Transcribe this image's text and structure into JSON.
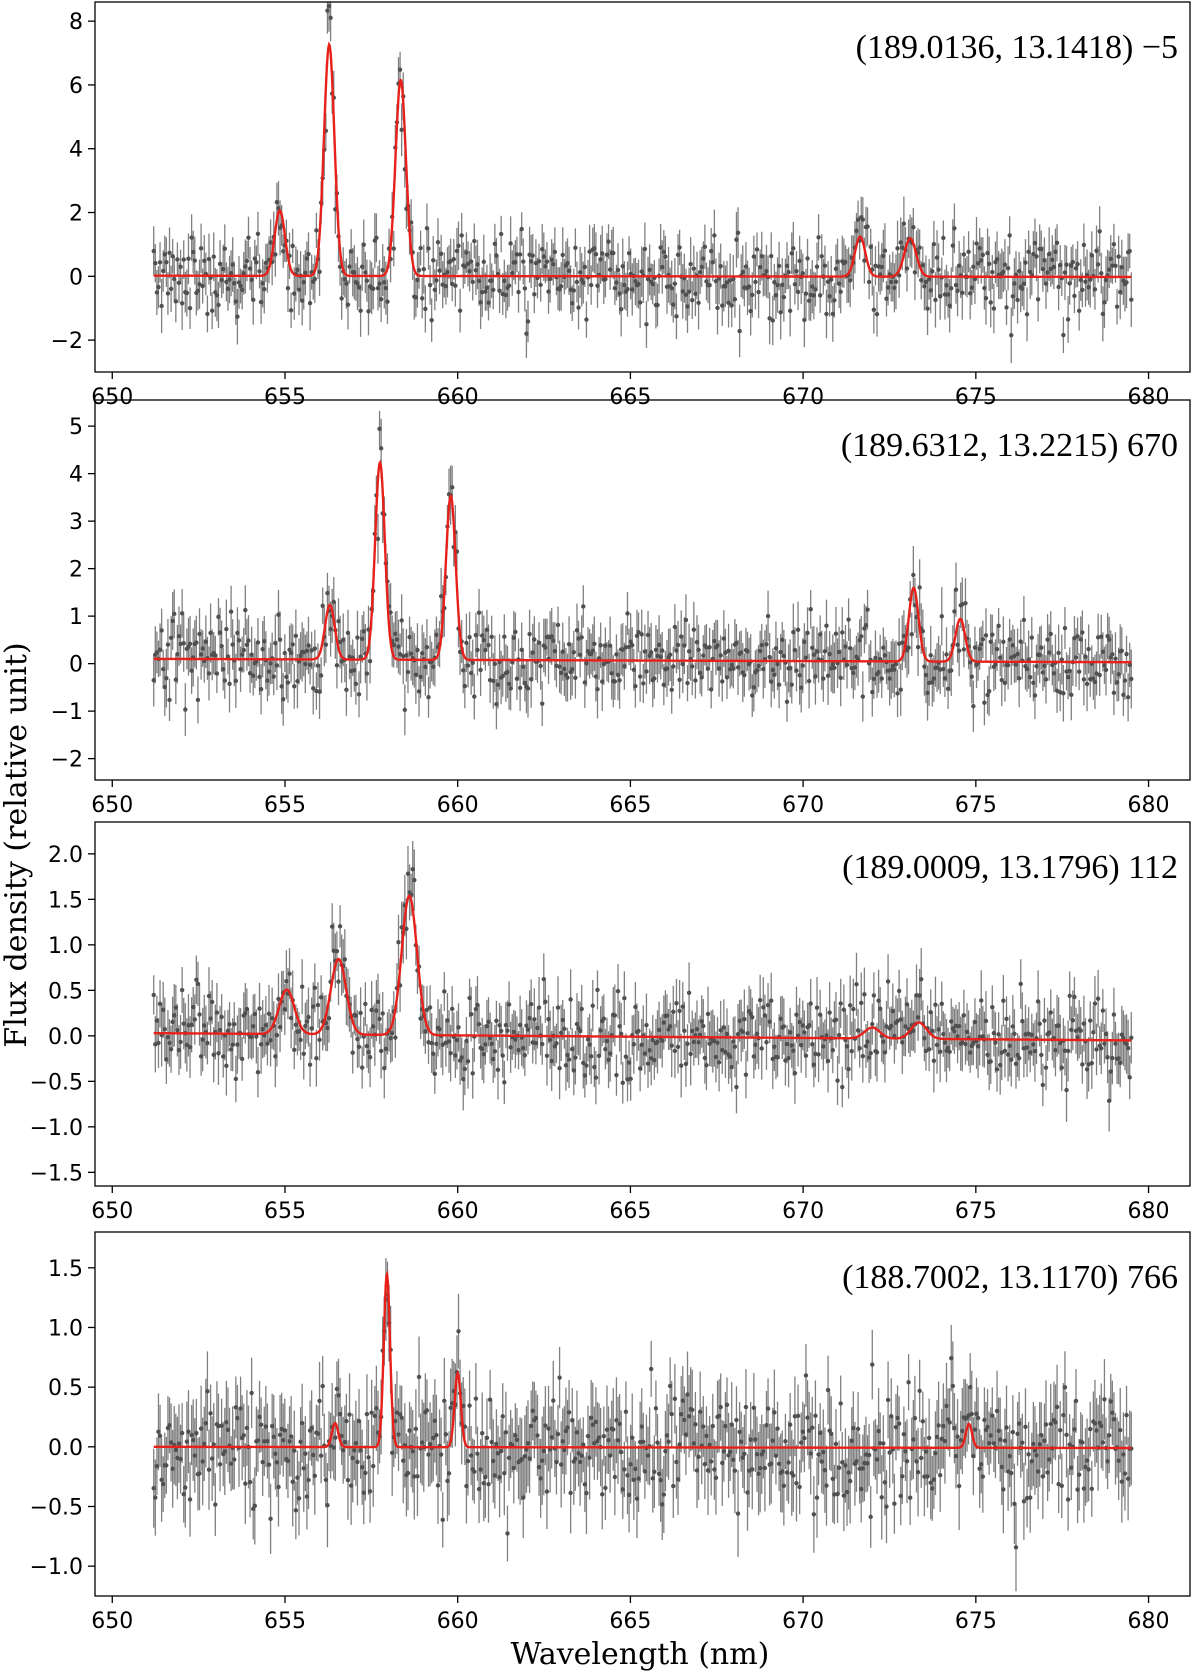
{
  "figure": {
    "xlabel": "Wavelength (nm)",
    "ylabel": "Flux density (relative unit)"
  },
  "chart_data": [
    {
      "type": "line",
      "title": "",
      "annotation": "(189.0136, 13.1418)  −5",
      "xlabel": "Wavelength (nm)",
      "ylabel": "Flux density (relative unit)",
      "xlim": [
        649.5,
        681.2
      ],
      "ylim": [
        -3.0,
        8.6
      ],
      "xticks": [
        650,
        655,
        660,
        665,
        670,
        675,
        680
      ],
      "xtick_labels": [
        "650",
        "655",
        "660",
        "665",
        "670",
        "675",
        "680"
      ],
      "yticks": [
        -2,
        0,
        2,
        4,
        6,
        8
      ],
      "ytick_labels": [
        "−2",
        "0",
        "2",
        "4",
        "6",
        "8"
      ],
      "x_range": [
        651.2,
        679.5
      ],
      "noise_sigma": 0.8,
      "errbar": 0.7,
      "seed": 11,
      "model": {
        "baseline": [
          0.02,
          -0.02
        ],
        "lines": [
          {
            "center": 654.85,
            "amp": 2.05,
            "sigma": 0.15
          },
          {
            "center": 656.28,
            "amp": 7.25,
            "sigma": 0.15
          },
          {
            "center": 658.35,
            "amp": 6.15,
            "sigma": 0.15
          },
          {
            "center": 671.65,
            "amp": 1.25,
            "sigma": 0.15
          },
          {
            "center": 673.1,
            "amp": 1.2,
            "sigma": 0.17
          }
        ]
      }
    },
    {
      "type": "line",
      "title": "",
      "annotation": "(189.6312, 13.2215)  670",
      "xlabel": "Wavelength (nm)",
      "ylabel": "Flux density (relative unit)",
      "xlim": [
        649.5,
        681.2
      ],
      "ylim": [
        -2.45,
        5.55
      ],
      "xticks": [
        650,
        655,
        660,
        665,
        670,
        675,
        680
      ],
      "xtick_labels": [
        "650",
        "655",
        "660",
        "665",
        "670",
        "675",
        "680"
      ],
      "yticks": [
        -2,
        -1,
        0,
        1,
        2,
        3,
        4,
        5
      ],
      "ytick_labels": [
        "−2",
        "−1",
        "0",
        "1",
        "2",
        "3",
        "4",
        "5"
      ],
      "x_range": [
        651.2,
        679.5
      ],
      "noise_sigma": 0.55,
      "errbar": 0.5,
      "seed": 23,
      "model": {
        "baseline": [
          0.1,
          0.03
        ],
        "lines": [
          {
            "center": 656.3,
            "amp": 1.15,
            "sigma": 0.14
          },
          {
            "center": 657.75,
            "amp": 4.15,
            "sigma": 0.14
          },
          {
            "center": 659.8,
            "amp": 3.45,
            "sigma": 0.14
          },
          {
            "center": 673.2,
            "amp": 1.55,
            "sigma": 0.14
          },
          {
            "center": 674.55,
            "amp": 0.9,
            "sigma": 0.14
          }
        ]
      }
    },
    {
      "type": "line",
      "title": "",
      "annotation": "(189.0009, 13.1796)  112",
      "xlabel": "Wavelength (nm)",
      "ylabel": "Flux density (relative unit)",
      "xlim": [
        649.5,
        681.2
      ],
      "ylim": [
        -1.65,
        2.35
      ],
      "xticks": [
        650,
        655,
        660,
        665,
        670,
        675,
        680
      ],
      "xtick_labels": [
        "650",
        "655",
        "660",
        "665",
        "670",
        "675",
        "680"
      ],
      "yticks": [
        -1.5,
        -1.0,
        -0.5,
        0.0,
        0.5,
        1.0,
        1.5,
        2.0
      ],
      "ytick_labels": [
        "−1.5",
        "−1.0",
        "−0.5",
        "0.0",
        "0.5",
        "1.0",
        "1.5",
        "2.0"
      ],
      "x_range": [
        651.2,
        679.5
      ],
      "noise_sigma": 0.3,
      "errbar": 0.28,
      "seed": 37,
      "model": {
        "baseline": [
          0.03,
          -0.05
        ],
        "lines": [
          {
            "center": 655.05,
            "amp": 0.49,
            "sigma": 0.22
          },
          {
            "center": 656.55,
            "amp": 0.83,
            "sigma": 0.22
          },
          {
            "center": 658.6,
            "amp": 1.53,
            "sigma": 0.22
          },
          {
            "center": 672.0,
            "amp": 0.12,
            "sigma": 0.22
          },
          {
            "center": 673.35,
            "amp": 0.18,
            "sigma": 0.22
          }
        ]
      }
    },
    {
      "type": "line",
      "title": "",
      "annotation": "(188.7002, 13.1170)  766",
      "xlabel": "Wavelength (nm)",
      "ylabel": "Flux density (relative unit)",
      "xlim": [
        649.5,
        681.2
      ],
      "ylim": [
        -1.25,
        1.8
      ],
      "xticks": [
        650,
        655,
        660,
        665,
        670,
        675,
        680
      ],
      "xtick_labels": [
        "650",
        "655",
        "660",
        "665",
        "670",
        "675",
        "680"
      ],
      "yticks": [
        -1.0,
        -0.5,
        0.0,
        0.5,
        1.0,
        1.5
      ],
      "ytick_labels": [
        "−1.0",
        "−0.5",
        "0.0",
        "0.5",
        "1.0",
        "1.5"
      ],
      "x_range": [
        651.2,
        679.5
      ],
      "noise_sigma": 0.32,
      "errbar": 0.3,
      "seed": 53,
      "model": {
        "baseline": [
          0.0,
          -0.01
        ],
        "lines": [
          {
            "center": 656.45,
            "amp": 0.2,
            "sigma": 0.09
          },
          {
            "center": 657.95,
            "amp": 1.45,
            "sigma": 0.09
          },
          {
            "center": 660.0,
            "amp": 0.62,
            "sigma": 0.09
          },
          {
            "center": 674.8,
            "amp": 0.2,
            "sigma": 0.09
          }
        ]
      }
    }
  ]
}
